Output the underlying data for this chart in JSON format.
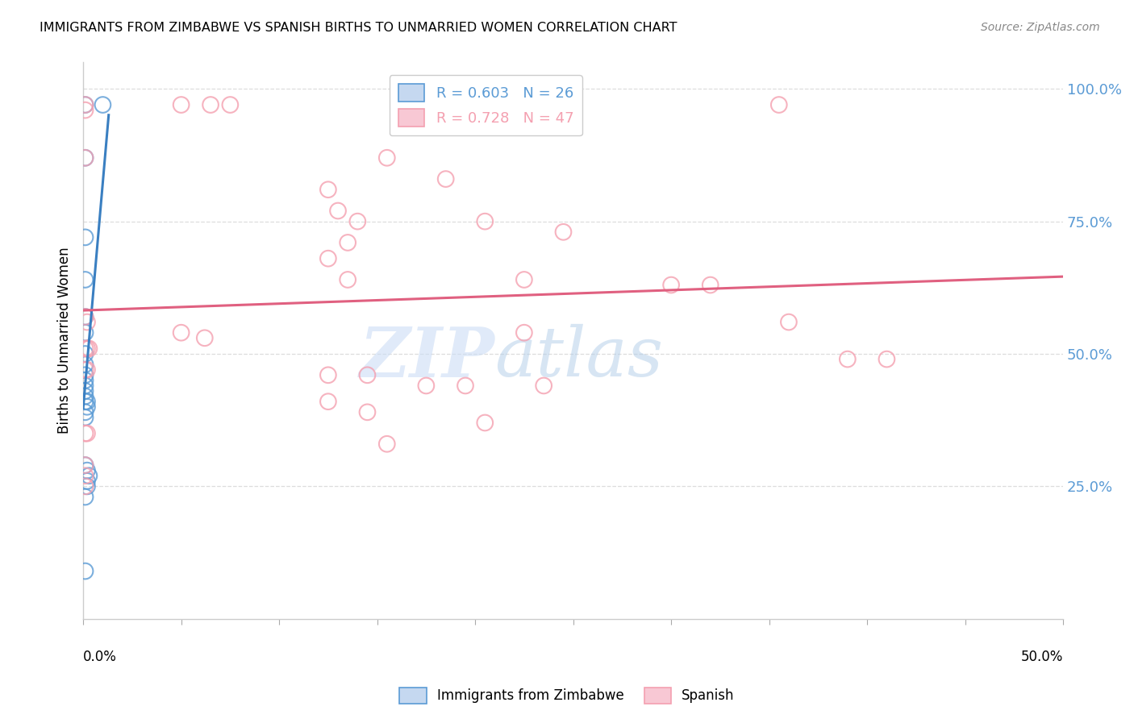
{
  "title": "IMMIGRANTS FROM ZIMBABWE VS SPANISH BIRTHS TO UNMARRIED WOMEN CORRELATION CHART",
  "source": "Source: ZipAtlas.com",
  "ylabel": "Births to Unmarried Women",
  "legend_blue_r": "R = 0.603",
  "legend_blue_n": "N = 26",
  "legend_pink_r": "R = 0.728",
  "legend_pink_n": "N = 47",
  "blue_color": "#5b9bd5",
  "pink_color": "#f4a0b0",
  "blue_line_color": "#3a7fc1",
  "pink_line_color": "#e06080",
  "watermark_zip": "ZIP",
  "watermark_atlas": "atlas",
  "blue_points": [
    [
      0.001,
      0.97
    ],
    [
      0.01,
      0.97
    ],
    [
      0.001,
      0.87
    ],
    [
      0.001,
      0.72
    ],
    [
      0.001,
      0.64
    ],
    [
      0.001,
      0.57
    ],
    [
      0.001,
      0.54
    ],
    [
      0.001,
      0.5
    ],
    [
      0.001,
      0.48
    ],
    [
      0.001,
      0.46
    ],
    [
      0.001,
      0.45
    ],
    [
      0.001,
      0.44
    ],
    [
      0.001,
      0.43
    ],
    [
      0.001,
      0.42
    ],
    [
      0.001,
      0.41
    ],
    [
      0.002,
      0.41
    ],
    [
      0.002,
      0.4
    ],
    [
      0.001,
      0.39
    ],
    [
      0.001,
      0.38
    ],
    [
      0.001,
      0.29
    ],
    [
      0.002,
      0.28
    ],
    [
      0.003,
      0.27
    ],
    [
      0.002,
      0.26
    ],
    [
      0.002,
      0.25
    ],
    [
      0.001,
      0.23
    ],
    [
      0.001,
      0.09
    ]
  ],
  "pink_points": [
    [
      0.001,
      0.97
    ],
    [
      0.001,
      0.96
    ],
    [
      0.05,
      0.97
    ],
    [
      0.065,
      0.97
    ],
    [
      0.075,
      0.97
    ],
    [
      0.355,
      0.97
    ],
    [
      0.001,
      0.87
    ],
    [
      0.155,
      0.87
    ],
    [
      0.185,
      0.83
    ],
    [
      0.125,
      0.81
    ],
    [
      0.13,
      0.77
    ],
    [
      0.14,
      0.75
    ],
    [
      0.205,
      0.75
    ],
    [
      0.245,
      0.73
    ],
    [
      0.135,
      0.71
    ],
    [
      0.125,
      0.68
    ],
    [
      0.135,
      0.64
    ],
    [
      0.225,
      0.64
    ],
    [
      0.3,
      0.63
    ],
    [
      0.32,
      0.63
    ],
    [
      0.001,
      0.57
    ],
    [
      0.002,
      0.56
    ],
    [
      0.05,
      0.54
    ],
    [
      0.062,
      0.53
    ],
    [
      0.225,
      0.54
    ],
    [
      0.36,
      0.56
    ],
    [
      0.001,
      0.51
    ],
    [
      0.002,
      0.51
    ],
    [
      0.003,
      0.51
    ],
    [
      0.39,
      0.49
    ],
    [
      0.41,
      0.49
    ],
    [
      0.001,
      0.47
    ],
    [
      0.002,
      0.47
    ],
    [
      0.125,
      0.46
    ],
    [
      0.145,
      0.46
    ],
    [
      0.175,
      0.44
    ],
    [
      0.195,
      0.44
    ],
    [
      0.235,
      0.44
    ],
    [
      0.125,
      0.41
    ],
    [
      0.145,
      0.39
    ],
    [
      0.205,
      0.37
    ],
    [
      0.001,
      0.35
    ],
    [
      0.002,
      0.35
    ],
    [
      0.155,
      0.33
    ],
    [
      0.001,
      0.29
    ],
    [
      0.001,
      0.27
    ],
    [
      0.001,
      0.25
    ]
  ],
  "xlim": [
    0,
    0.5
  ],
  "ylim": [
    0.0,
    1.05
  ],
  "xticks": [
    0.0,
    0.05,
    0.1,
    0.15,
    0.2,
    0.25,
    0.3,
    0.35,
    0.4,
    0.45,
    0.5
  ],
  "yticks": [
    0.25,
    0.5,
    0.75,
    1.0
  ],
  "ytick_labels": [
    "25.0%",
    "50.0%",
    "75.0%",
    "100.0%"
  ]
}
